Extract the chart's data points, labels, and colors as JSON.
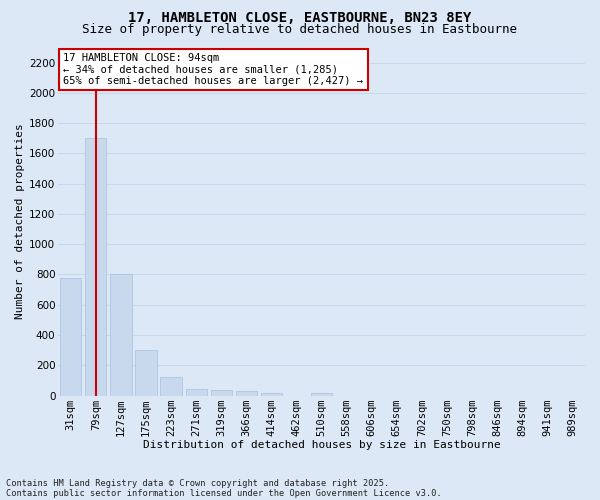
{
  "title1": "17, HAMBLETON CLOSE, EASTBOURNE, BN23 8EY",
  "title2": "Size of property relative to detached houses in Eastbourne",
  "xlabel": "Distribution of detached houses by size in Eastbourne",
  "ylabel": "Number of detached properties",
  "categories": [
    "31sqm",
    "79sqm",
    "127sqm",
    "175sqm",
    "223sqm",
    "271sqm",
    "319sqm",
    "366sqm",
    "414sqm",
    "462sqm",
    "510sqm",
    "558sqm",
    "606sqm",
    "654sqm",
    "702sqm",
    "750sqm",
    "798sqm",
    "846sqm",
    "894sqm",
    "941sqm",
    "989sqm"
  ],
  "values": [
    775,
    1700,
    800,
    300,
    120,
    45,
    38,
    28,
    18,
    0,
    20,
    0,
    0,
    0,
    0,
    0,
    0,
    0,
    0,
    0,
    0
  ],
  "bar_color": "#c8d9ee",
  "bar_edge_color": "#a8c0dd",
  "vline_x": 1.0,
  "vline_color": "#cc0000",
  "annotation_text": "17 HAMBLETON CLOSE: 94sqm\n← 34% of detached houses are smaller (1,285)\n65% of semi-detached houses are larger (2,427) →",
  "annotation_box_facecolor": "#ffffff",
  "annotation_box_edgecolor": "#cc0000",
  "ylim": [
    0,
    2300
  ],
  "yticks": [
    0,
    200,
    400,
    600,
    800,
    1000,
    1200,
    1400,
    1600,
    1800,
    2000,
    2200
  ],
  "background_color": "#dce8f5",
  "grid_color": "#c8d8ec",
  "footer": "Contains HM Land Registry data © Crown copyright and database right 2025.\nContains public sector information licensed under the Open Government Licence v3.0.",
  "title_fontsize": 10,
  "subtitle_fontsize": 9,
  "axis_label_fontsize": 8,
  "tick_fontsize": 7.5,
  "annotation_fontsize": 7.5
}
